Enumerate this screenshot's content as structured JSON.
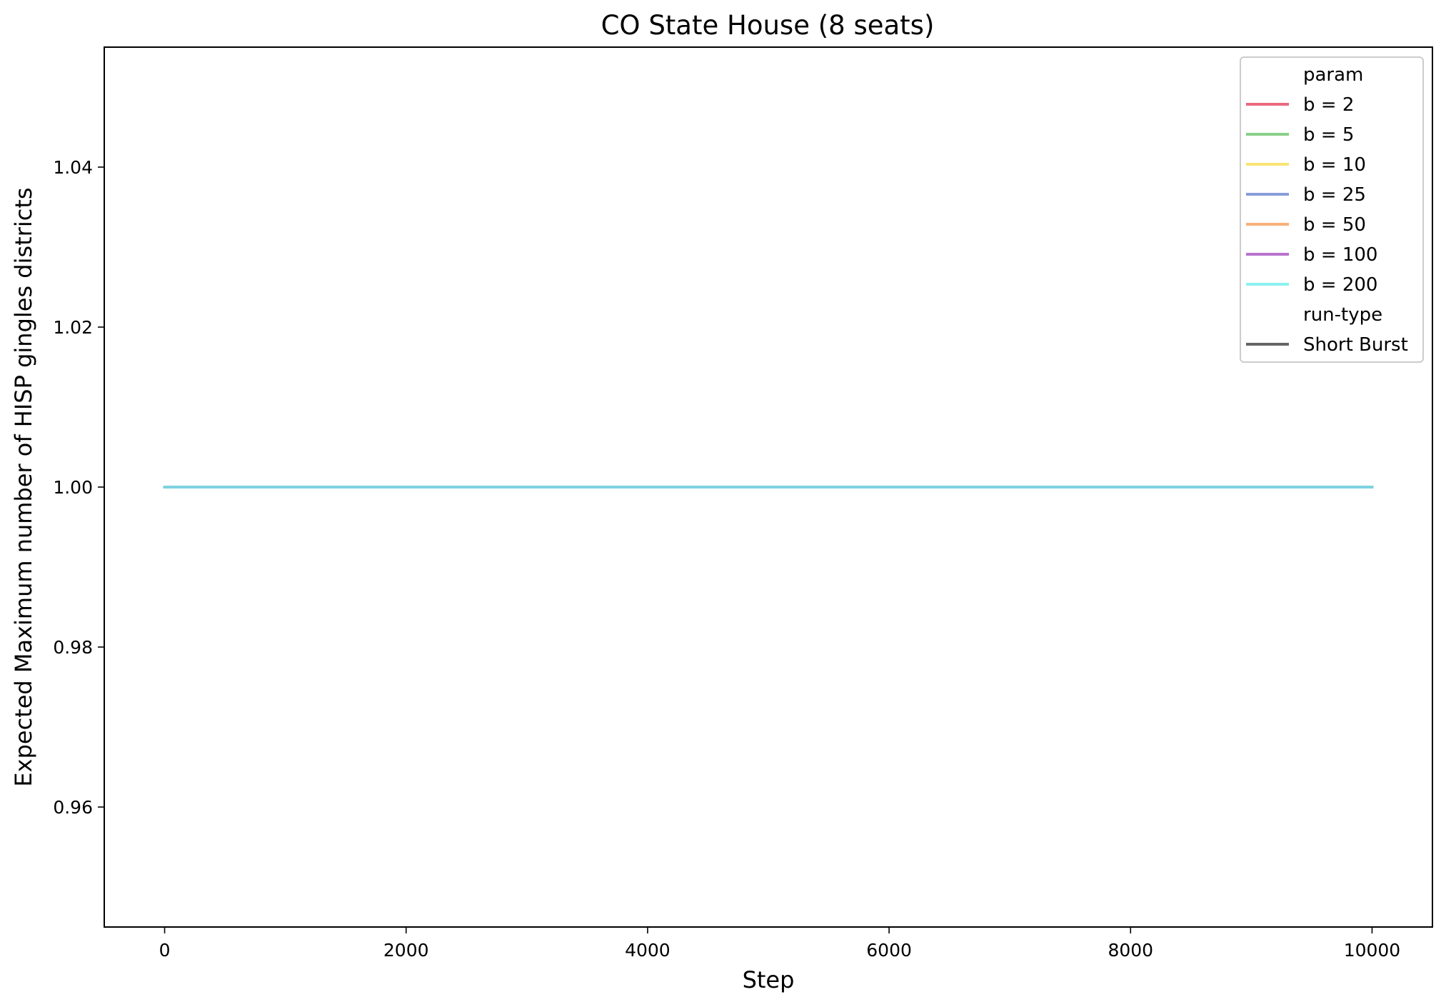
{
  "chart_data": {
    "type": "line",
    "title": "CO State House (8 seats)",
    "xlabel": "Step",
    "ylabel": "Expected Maximum number of HISP gingles districts",
    "xlim": [
      -500,
      10500
    ],
    "ylim": [
      0.945,
      1.055
    ],
    "xticks": [
      0,
      2000,
      4000,
      6000,
      8000,
      10000
    ],
    "xtick_labels": [
      "0",
      "2000",
      "4000",
      "6000",
      "8000",
      "10000"
    ],
    "yticks": [
      0.96,
      0.98,
      1.0,
      1.02,
      1.04
    ],
    "ytick_labels": [
      "0.96",
      "0.98",
      "1.00",
      "1.02",
      "1.04"
    ],
    "grid": false,
    "legend": {
      "placement": "top-right",
      "param_heading": "param",
      "run_type_heading": "run-type",
      "run_types": [
        {
          "name": "Short Burst",
          "color": "#666666"
        }
      ]
    },
    "series": [
      {
        "name": "b = 2",
        "color": "#e6445f",
        "x": [
          0,
          10000
        ],
        "y": [
          1.0,
          1.0
        ]
      },
      {
        "name": "b = 5",
        "color": "#6cc46c",
        "x": [
          0,
          10000
        ],
        "y": [
          1.0,
          1.0
        ]
      },
      {
        "name": "b = 10",
        "color": "#f7dd52",
        "x": [
          0,
          10000
        ],
        "y": [
          1.0,
          1.0
        ]
      },
      {
        "name": "b = 25",
        "color": "#6a84d0",
        "x": [
          0,
          10000
        ],
        "y": [
          1.0,
          1.0
        ]
      },
      {
        "name": "b = 50",
        "color": "#f59b55",
        "x": [
          0,
          10000
        ],
        "y": [
          1.0,
          1.0
        ]
      },
      {
        "name": "b = 100",
        "color": "#a550bf",
        "x": [
          0,
          10000
        ],
        "y": [
          1.0,
          1.0
        ]
      },
      {
        "name": "b = 200",
        "color": "#72eeee",
        "x": [
          0,
          10000
        ],
        "y": [
          1.0,
          1.0
        ]
      }
    ]
  }
}
